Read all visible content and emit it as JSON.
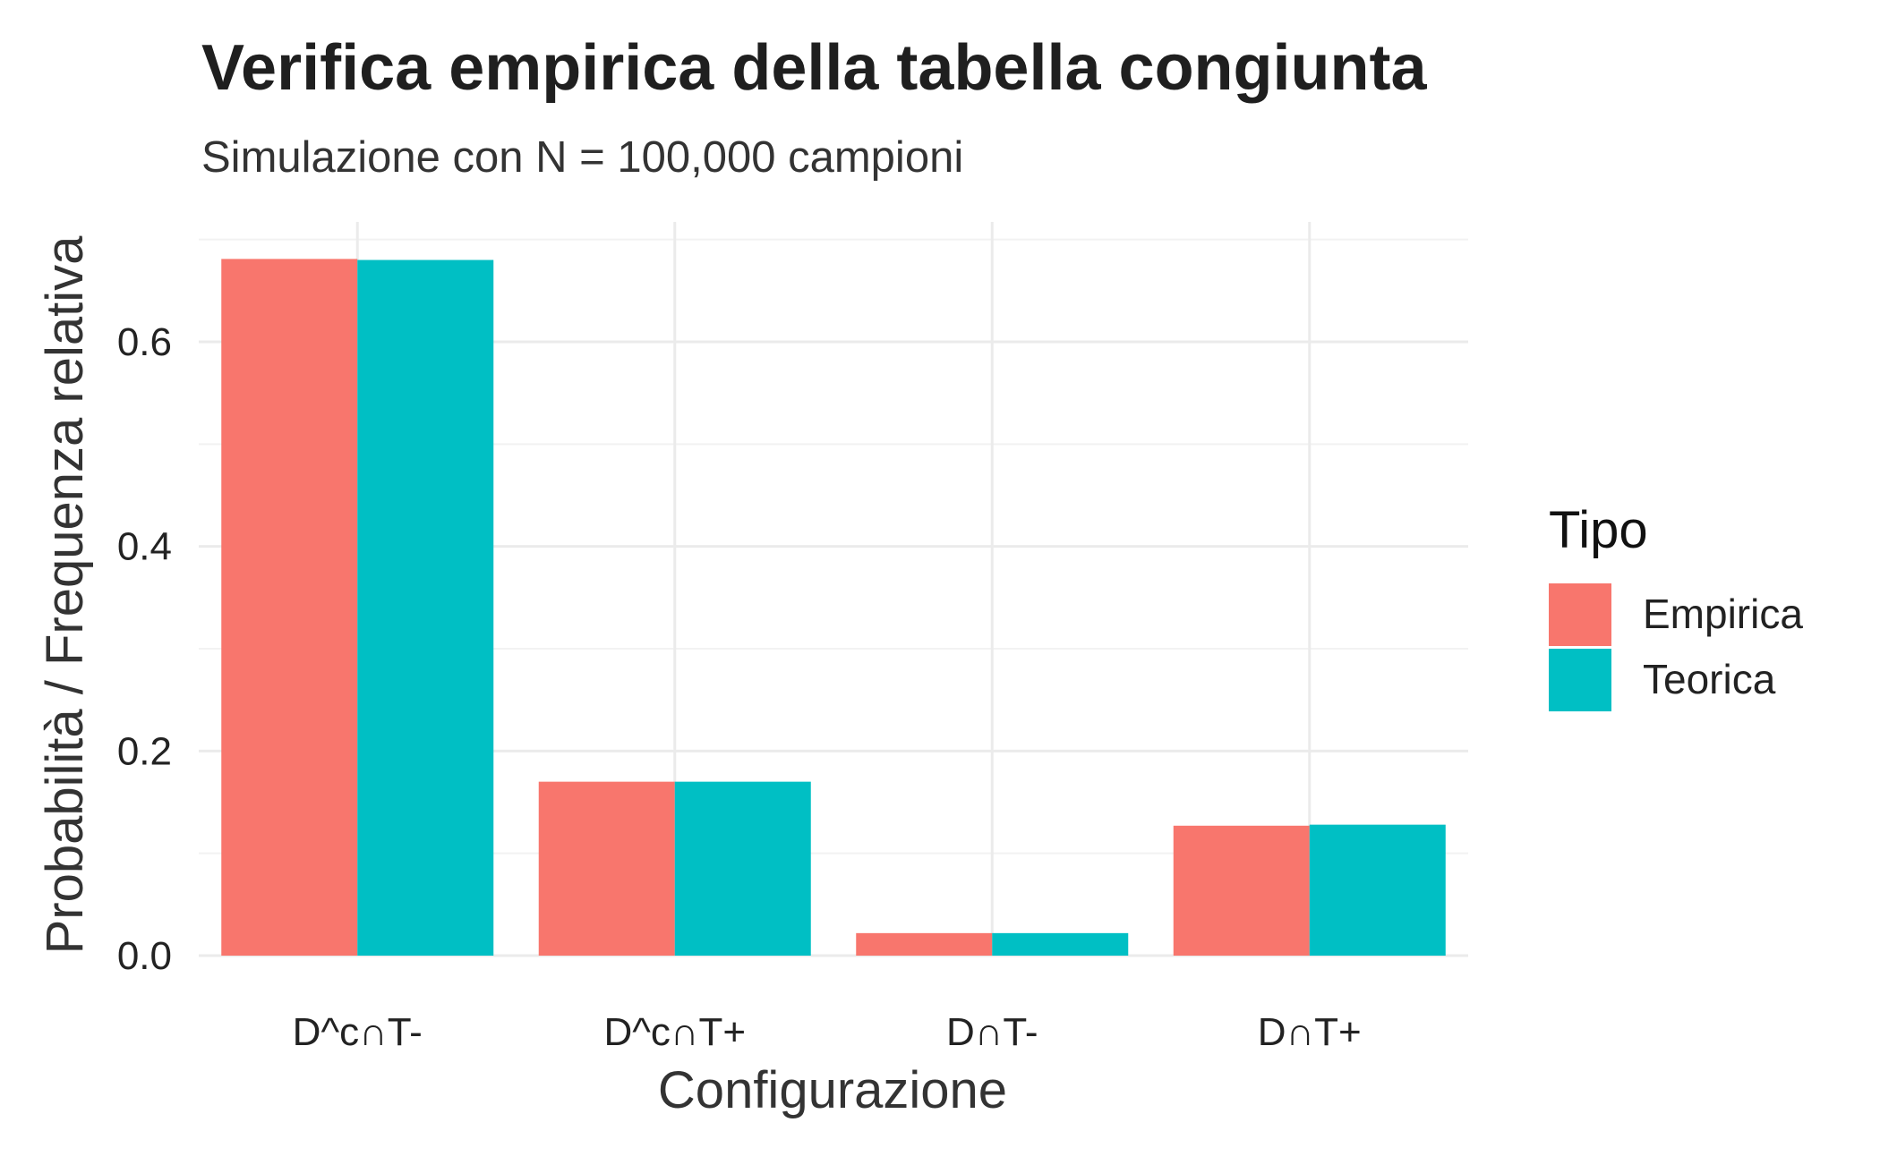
{
  "chart_data": {
    "type": "bar",
    "title": "Verifica empirica della tabella congiunta",
    "subtitle": "Simulazione con N = 100,000 campioni",
    "xlabel": "Configurazione",
    "ylabel": "Probabilità / Frequenza relativa",
    "categories": [
      "D^c∩T-",
      "D^c∩T+",
      "D∩T-",
      "D∩T+"
    ],
    "series": [
      {
        "name": "Empirica",
        "color": "#F8766D",
        "values": [
          0.681,
          0.17,
          0.022,
          0.127
        ]
      },
      {
        "name": "Teorica",
        "color": "#00BFC4",
        "values": [
          0.68,
          0.17,
          0.022,
          0.128
        ]
      }
    ],
    "ylim": [
      0,
      0.7
    ],
    "yticks": [
      {
        "value": 0.0,
        "label": "0.0"
      },
      {
        "value": 0.2,
        "label": "0.2"
      },
      {
        "value": 0.4,
        "label": "0.4"
      },
      {
        "value": 0.6,
        "label": "0.6"
      }
    ],
    "grid": true,
    "legend": {
      "title": "Tipo",
      "position": "right"
    }
  }
}
